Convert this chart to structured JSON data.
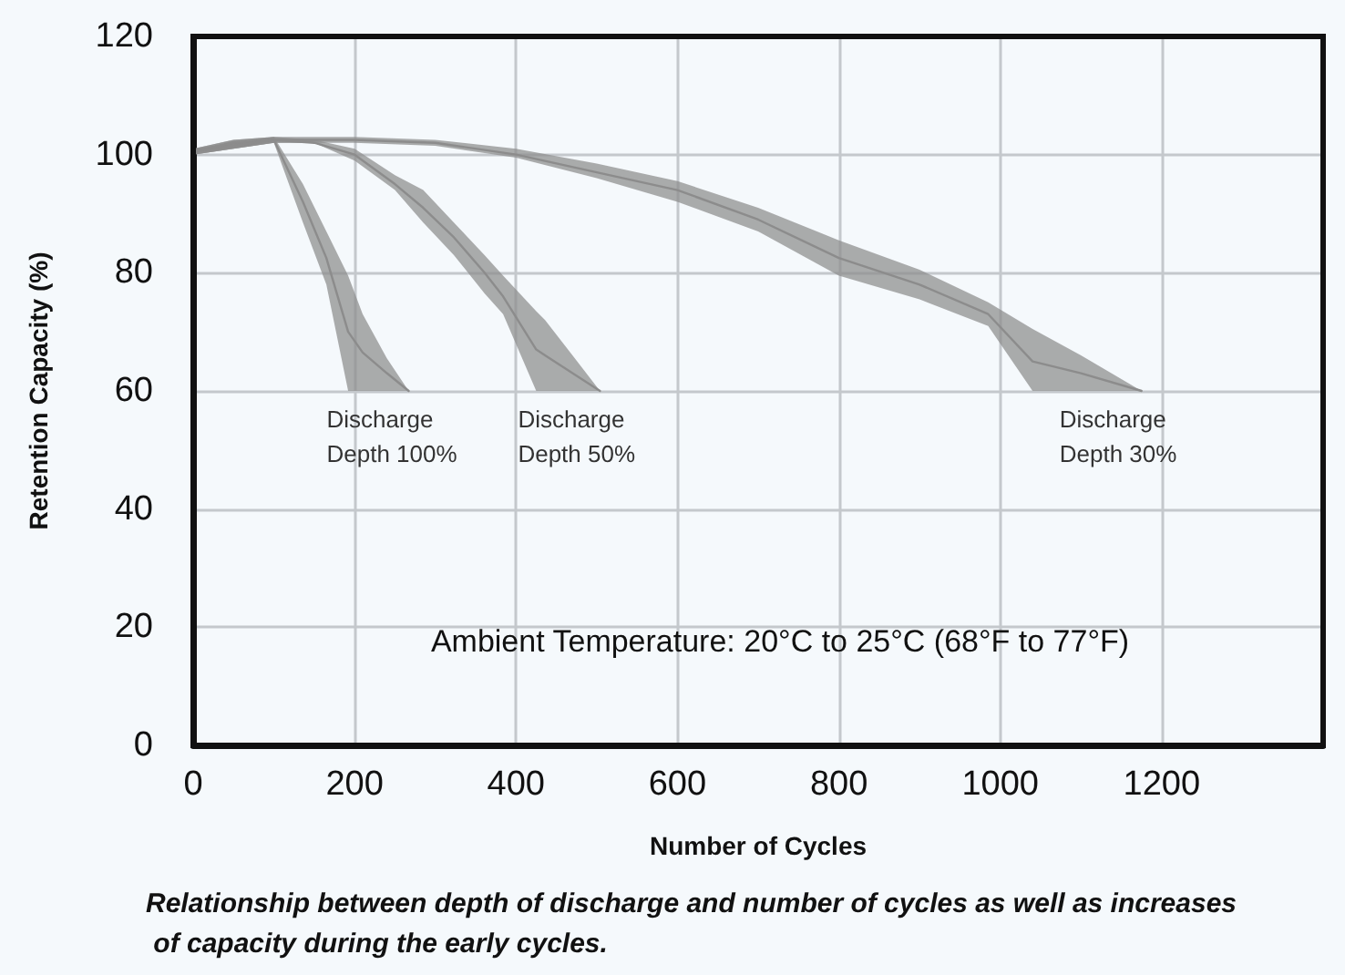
{
  "chart_data": {
    "type": "line",
    "xlabel": "Number of Cycles",
    "ylabel": "Retention Capacity (%)",
    "xlim": [
      0,
      1400
    ],
    "xticks": [
      0,
      200,
      400,
      600,
      800,
      1000,
      1200
    ],
    "ylim": [
      0,
      120
    ],
    "yticks": [
      0,
      20,
      40,
      60,
      80,
      100,
      120
    ],
    "grid": true,
    "legend": false,
    "marker": "none",
    "series": [
      {
        "name": "Discharge Depth 100%",
        "color": "#8c8c8c",
        "x": [
          0,
          50,
          100,
          136,
          165,
          192,
          210,
          240,
          267
        ],
        "values": [
          100.5,
          102,
          102.5,
          92,
          82.5,
          70,
          66.5,
          63,
          60
        ],
        "lower": [
          100,
          101,
          102,
          88.5,
          78,
          60,
          60,
          60,
          60
        ],
        "upper": [
          101,
          102.5,
          103,
          95,
          87,
          79.5,
          73,
          65.5,
          60
        ]
      },
      {
        "name": "Discharge Depth 50%",
        "color": "#8c8c8c",
        "x": [
          0,
          50,
          100,
          150,
          200,
          250,
          285,
          323,
          361,
          384,
          425,
          436,
          470,
          504
        ],
        "values": [
          100.5,
          102,
          102.5,
          102,
          100,
          95,
          91,
          86,
          80,
          76,
          67,
          66,
          63,
          60
        ],
        "lower": [
          100,
          101,
          102,
          102,
          99,
          94,
          88.5,
          83,
          76.5,
          73,
          60,
          60,
          60,
          60
        ],
        "upper": [
          101,
          102.5,
          103,
          102.5,
          101,
          96.5,
          94,
          88.5,
          83,
          79.5,
          73.5,
          72,
          66,
          60
        ]
      },
      {
        "name": "Discharge Depth 30%",
        "color": "#8c8c8c",
        "x": [
          0,
          100,
          200,
          300,
          400,
          500,
          600,
          700,
          800,
          900,
          985,
          1040,
          1100,
          1175
        ],
        "values": [
          100.5,
          102.5,
          102.5,
          102,
          100,
          97,
          94,
          89,
          82.5,
          78,
          73,
          65,
          63,
          60
        ],
        "lower": [
          100,
          102,
          102,
          101.5,
          99.5,
          96,
          92,
          87,
          79.5,
          75.5,
          71,
          60,
          60,
          60
        ],
        "upper": [
          101,
          103,
          103,
          102.5,
          101,
          98.5,
          95.5,
          91,
          85.5,
          80.5,
          75,
          70.5,
          66,
          60
        ]
      }
    ],
    "annotations": [
      "Ambient Temperature: 20°C to 25°C (68°F to 77°F)",
      "Relationship between depth of discharge and number of cycles as well as increases of capacity during the early cycles."
    ]
  }
}
